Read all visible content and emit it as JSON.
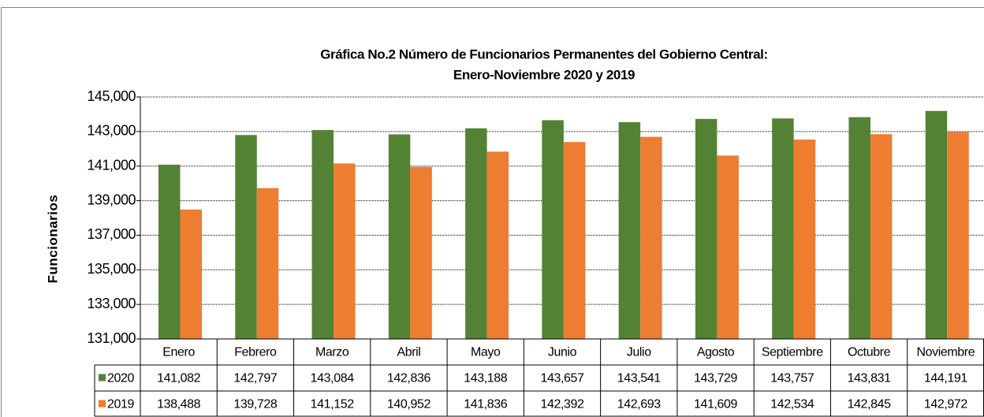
{
  "chart_data": {
    "type": "bar",
    "title": [
      "Gráfica No.2 Número de Funcionarios Permanentes del Gobierno Central:",
      "Enero-Noviembre 2020 y 2019"
    ],
    "ylabel": "Funcionarios",
    "categories": [
      "Enero",
      "Febrero",
      "Marzo",
      "Abril",
      "Mayo",
      "Junio",
      "Julio",
      "Agosto",
      "Septiembre",
      "Octubre",
      "Noviembre"
    ],
    "series": [
      {
        "name": "2020",
        "color": "#548235",
        "values": [
          141082,
          142797,
          143084,
          142836,
          143188,
          143657,
          143541,
          143729,
          143757,
          143831,
          144191
        ],
        "value_labels": [
          "141,082",
          "142,797",
          "143,084",
          "142,836",
          "143,188",
          "143,657",
          "143,541",
          "143,729",
          "143,757",
          "143,831",
          "144,191"
        ]
      },
      {
        "name": "2019",
        "color": "#ed7d31",
        "values": [
          138488,
          139728,
          141152,
          140952,
          141836,
          142392,
          142693,
          141609,
          142534,
          142845,
          142972
        ],
        "value_labels": [
          "138,488",
          "139,728",
          "141,152",
          "140,952",
          "141,836",
          "142,392",
          "142,693",
          "141,609",
          "142,534",
          "142,845",
          "142,972"
        ]
      }
    ],
    "ylim": [
      131000,
      145000
    ],
    "yticks": [
      {
        "value": 131000,
        "label": "131,000"
      },
      {
        "value": 133000,
        "label": "133,000"
      },
      {
        "value": 135000,
        "label": "135,000"
      },
      {
        "value": 137000,
        "label": "137,000"
      },
      {
        "value": 139000,
        "label": "139,000"
      },
      {
        "value": 141000,
        "label": "141,000"
      },
      {
        "value": 143000,
        "label": "143,000"
      },
      {
        "value": 145000,
        "label": "145,000"
      }
    ],
    "grid": true
  }
}
